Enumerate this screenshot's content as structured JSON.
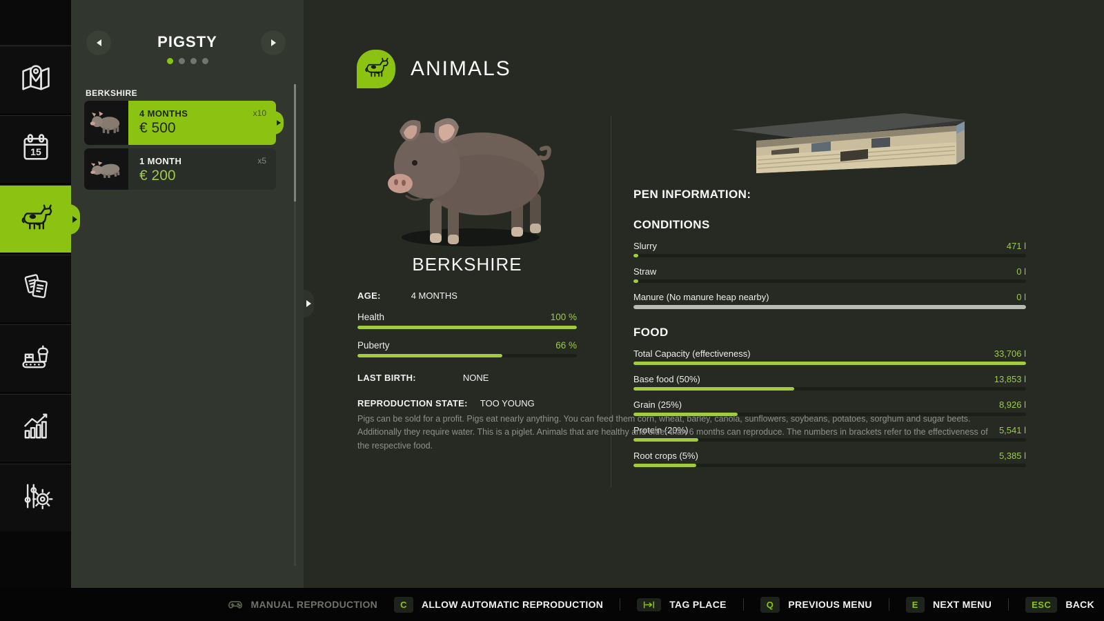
{
  "colors": {
    "accent": "#8cc312",
    "bar_fill": "#a2cc3e",
    "value_green": "#9fc94c",
    "gray_bar": "#b9bcb5",
    "panel_bg": "#31362e",
    "content_bg": "#262a23"
  },
  "sidebar": {
    "calendar_day": "15",
    "icons": [
      "map-icon",
      "calendar-icon",
      "cow-icon",
      "documents-icon",
      "production-icon",
      "statistics-icon",
      "settings-icon"
    ]
  },
  "list_panel": {
    "title": "PIGSTY",
    "page_dots": 4,
    "active_dot": 0,
    "group_label": "BERKSHIRE",
    "items": [
      {
        "age": "4 MONTHS",
        "count": "x10",
        "price": "€ 500",
        "selected": true
      },
      {
        "age": "1 MONTH",
        "count": "x5",
        "price": "€ 200",
        "selected": false
      }
    ]
  },
  "main": {
    "title": "ANIMALS",
    "animal": {
      "name": "BERKSHIRE",
      "age_label": "AGE:",
      "age_value": "4 MONTHS",
      "health_label": "Health",
      "health_value": "100 %",
      "health_pct": 100,
      "puberty_label": "Puberty",
      "puberty_value": "66 %",
      "puberty_pct": 66,
      "last_birth_label": "LAST BIRTH:",
      "last_birth_value": "NONE",
      "repro_label": "REPRODUCTION STATE:",
      "repro_value": "TOO YOUNG"
    },
    "pen": {
      "title": "PEN INFORMATION:",
      "conditions_title": "CONDITIONS",
      "conditions": [
        {
          "label": "Slurry",
          "value": "471 l",
          "pct": 1.3
        },
        {
          "label": "Straw",
          "value": "0 l",
          "pct": 1.3
        },
        {
          "label": "Manure (No manure heap nearby)",
          "value": "0 l",
          "pct": 100
        }
      ],
      "food_title": "FOOD",
      "food": [
        {
          "label": "Total Capacity (effectiveness)",
          "value": "33,706 l",
          "pct": 100
        },
        {
          "label": "Base food (50%)",
          "value": "13,853 l",
          "pct": 41
        },
        {
          "label": "Grain (25%)",
          "value": "8,926 l",
          "pct": 26.5
        },
        {
          "label": "Protein (20%)",
          "value": "5,541 l",
          "pct": 16.5
        },
        {
          "label": "Root crops (5%)",
          "value": "5,385 l",
          "pct": 16
        }
      ]
    },
    "description": "Pigs can be sold for a profit. Pigs eat nearly anything. You can feed them corn, wheat, barley, canola, sunflowers, soybeans, potatoes, sorghum and sugar beets. Additionally they require water. This is a piglet. Animals that are healthy and older than 6 months can reproduce. The numbers in brackets refer to the effectiveness of the respective food."
  },
  "bottom_bar": {
    "groups": [
      {
        "icon": "gamepad-icon",
        "label": "MANUAL REPRODUCTION"
      },
      {
        "key": "C",
        "label": "ALLOW AUTOMATIC REPRODUCTION"
      },
      {
        "icon": "tab-key-icon",
        "label": "TAG PLACE"
      },
      {
        "key": "Q",
        "label": "PREVIOUS MENU"
      },
      {
        "key": "E",
        "label": "NEXT MENU"
      },
      {
        "key": "ESC",
        "label": "BACK"
      }
    ]
  }
}
